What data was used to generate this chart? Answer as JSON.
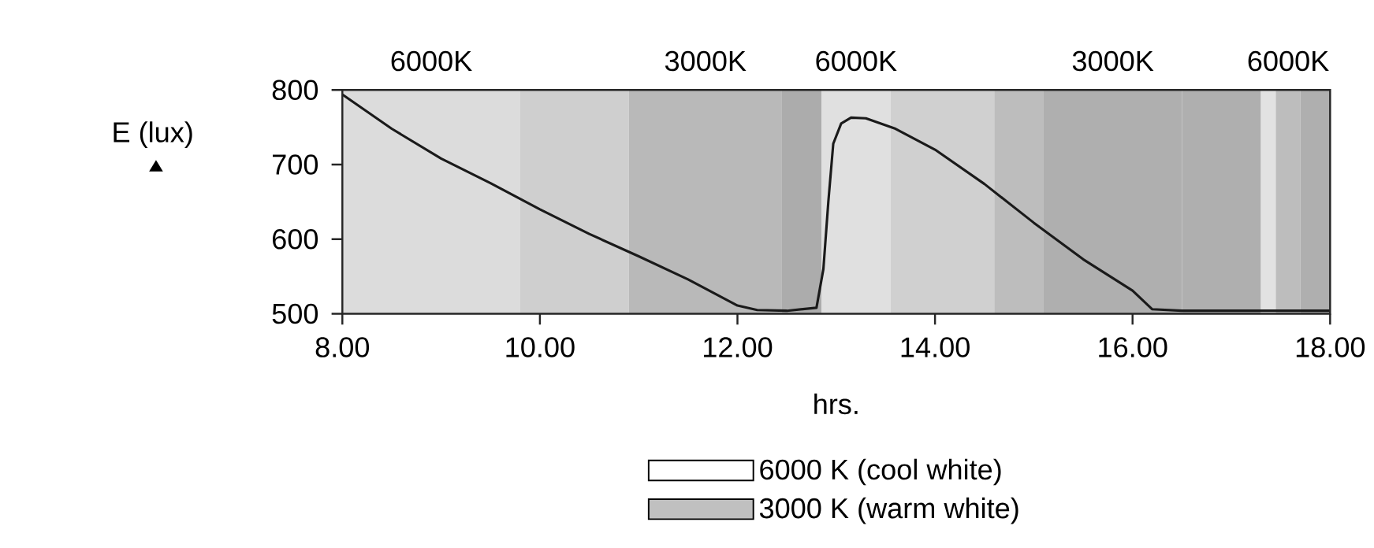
{
  "chart_data": {
    "type": "line",
    "xlabel": "hrs.",
    "ylabel": "E (lux)",
    "xlim": [
      8,
      18
    ],
    "ylim": [
      500,
      800
    ],
    "xticks": [
      {
        "value": 8,
        "label": "8.00"
      },
      {
        "value": 10,
        "label": "10.00"
      },
      {
        "value": 12,
        "label": "12.00"
      },
      {
        "value": 14,
        "label": "14.00"
      },
      {
        "value": 16,
        "label": "16.00"
      },
      {
        "value": 18,
        "label": "18.00"
      }
    ],
    "yticks": [
      500,
      600,
      700,
      800
    ],
    "legend": "bottom",
    "marker": "none",
    "line_style": "solid",
    "series": [
      {
        "color": "#1a1a1a",
        "x": [
          8.0,
          8.5,
          9.0,
          9.5,
          10.0,
          10.5,
          11.0,
          11.5,
          12.0,
          12.2,
          12.5,
          12.8,
          12.87,
          12.92,
          12.97,
          13.05,
          13.15,
          13.3,
          13.6,
          14.0,
          14.5,
          15.0,
          15.5,
          16.0,
          16.2,
          16.5,
          17.0,
          17.5,
          18.0
        ],
        "values": [
          794,
          748,
          708,
          675,
          640,
          607,
          577,
          546,
          511,
          505,
          504,
          508,
          560,
          650,
          728,
          755,
          763,
          762,
          748,
          720,
          674,
          622,
          573,
          531,
          506,
          504,
          504,
          504,
          504
        ]
      },
      {
        "type": "area",
        "name": "6000 K (cool white)",
        "color": "#ffffff"
      },
      {
        "type": "area",
        "name": "3000 K   (warm white)",
        "color": "#c0c0c0"
      }
    ],
    "bands": [
      {
        "axis": "x",
        "from": 8.0,
        "to": 9.8,
        "label": "6000K",
        "color": "#dcdcdc"
      },
      {
        "axis": "x",
        "from": 9.8,
        "to": 10.9,
        "label": null,
        "color": "#cfcfcf"
      },
      {
        "axis": "x",
        "from": 10.9,
        "to": 12.45,
        "label": "3000K",
        "color": "#b9b9b9"
      },
      {
        "axis": "x",
        "from": 12.45,
        "to": 12.85,
        "label": null,
        "color": "#acacac"
      },
      {
        "axis": "x",
        "from": 12.85,
        "to": 13.55,
        "label": "6000K",
        "color": "#e0e0e0"
      },
      {
        "axis": "x",
        "from": 13.55,
        "to": 14.6,
        "label": null,
        "color": "#d0d0d0"
      },
      {
        "axis": "x",
        "from": 14.6,
        "to": 15.1,
        "label": null,
        "color": "#bdbdbd"
      },
      {
        "axis": "x",
        "from": 15.1,
        "to": 16.5,
        "label": "3000K",
        "color": "#afafaf"
      },
      {
        "axis": "x",
        "from": 16.5,
        "to": 17.3,
        "label": null,
        "color": "#afafaf"
      },
      {
        "axis": "x",
        "from": 17.3,
        "to": 17.45,
        "label": null,
        "color": "#e2e2e2"
      },
      {
        "axis": "x",
        "from": 17.45,
        "to": 17.7,
        "label": "6000K",
        "color": "#bdbdbd"
      },
      {
        "axis": "x",
        "from": 17.7,
        "to": 18.0,
        "label": null,
        "color": "#afafaf"
      }
    ]
  }
}
